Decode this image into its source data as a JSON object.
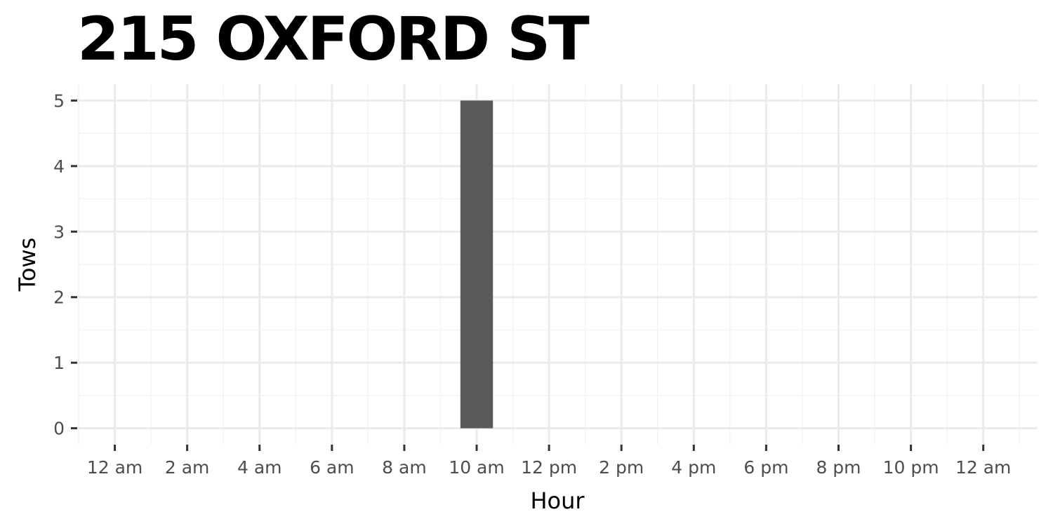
{
  "chart_data": {
    "type": "bar",
    "title": "215 OXFORD ST",
    "xlabel": "Hour",
    "ylabel": "Tows",
    "x_tick_labels": [
      "12 am",
      "2 am",
      "4 am",
      "6 am",
      "8 am",
      "10 am",
      "12 pm",
      "2 pm",
      "4 pm",
      "6 pm",
      "8 pm",
      "10 pm",
      "12 am"
    ],
    "x_ticks": [
      0,
      2,
      4,
      6,
      8,
      10,
      12,
      14,
      16,
      18,
      20,
      22,
      24
    ],
    "y_ticks": [
      0,
      1,
      2,
      3,
      4,
      5
    ],
    "xlim": [
      -1,
      25.5
    ],
    "ylim": [
      -0.25,
      5.25
    ],
    "bars": [
      {
        "x": 10,
        "value": 5
      }
    ],
    "bar_width_hours": 0.9,
    "grid": true,
    "colors": {
      "bar": "#595959",
      "grid_major": "#ebebeb",
      "grid_minor": "#f3f3f3",
      "tick": "#333333"
    }
  }
}
